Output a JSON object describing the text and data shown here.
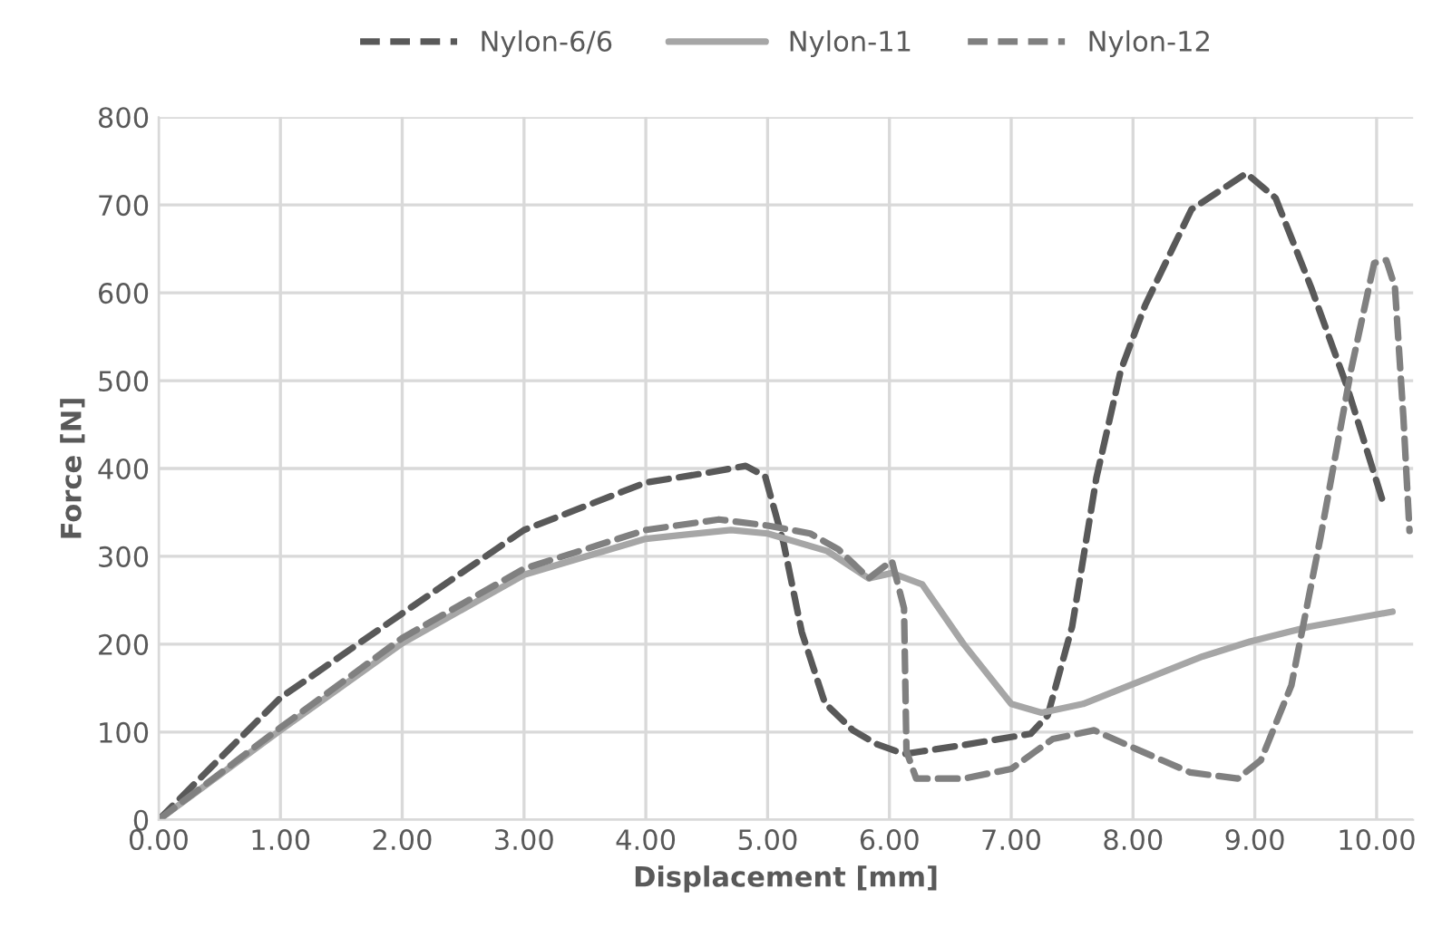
{
  "chart_data": {
    "type": "line",
    "xlabel": "Displacement [mm]",
    "ylabel": "Force [N]",
    "xlim": [
      0,
      10.3
    ],
    "ylim": [
      0,
      800
    ],
    "xticks": [
      {
        "value": 0,
        "label": "0.00"
      },
      {
        "value": 1,
        "label": "1.00"
      },
      {
        "value": 2,
        "label": "2.00"
      },
      {
        "value": 3,
        "label": "3.00"
      },
      {
        "value": 4,
        "label": "4.00"
      },
      {
        "value": 5,
        "label": "5.00"
      },
      {
        "value": 6,
        "label": "6.00"
      },
      {
        "value": 7,
        "label": "7.00"
      },
      {
        "value": 8,
        "label": "8.00"
      },
      {
        "value": 9,
        "label": "9.00"
      },
      {
        "value": 10,
        "label": "10.00"
      }
    ],
    "yticks": [
      0,
      100,
      200,
      300,
      400,
      500,
      600,
      700,
      800
    ],
    "grid": true,
    "legend": "top",
    "marker": "none",
    "series": [
      {
        "name": "Nylon-6/6",
        "color": "#595959",
        "line_style": "dashed",
        "x": [
          0,
          1,
          2,
          3,
          4,
          4.5,
          4.82,
          4.98,
          5.13,
          5.28,
          5.47,
          5.7,
          5.9,
          6.12,
          6.6,
          7.16,
          7.3,
          7.5,
          7.7,
          7.9,
          8.1,
          8.48,
          8.93,
          9.17,
          9.46,
          9.76,
          10.05
        ],
        "values": [
          0,
          139,
          235,
          330,
          384,
          395,
          403,
          391,
          316,
          214,
          133,
          102,
          86,
          75,
          85,
          98,
          119,
          220,
          390,
          512,
          586,
          695,
          736,
          708,
          607,
          492,
          363
        ]
      },
      {
        "name": "Nylon-11",
        "color": "#a6a6a6",
        "line_style": "solid",
        "x": [
          0,
          1,
          2,
          3,
          4,
          4.7,
          5,
          5.49,
          5.83,
          6.02,
          6.27,
          6.61,
          7.0,
          7.25,
          7.59,
          8.08,
          8.57,
          8.96,
          9.45,
          10.13
        ],
        "values": [
          0,
          102,
          201,
          279,
          320,
          330,
          326,
          306,
          275,
          281,
          268,
          200,
          132,
          122,
          132,
          159,
          186,
          203,
          220,
          237
        ]
      },
      {
        "name": "Nylon-12",
        "color": "#808080",
        "line_style": "dashed",
        "x": [
          0,
          1,
          2,
          3,
          4,
          4.6,
          5,
          5.35,
          5.58,
          5.83,
          6.02,
          6.12,
          6.14,
          6.22,
          6.61,
          7.0,
          7.34,
          7.68,
          8.07,
          8.47,
          8.86,
          9.05,
          9.3,
          9.54,
          9.79,
          9.98,
          10.08,
          10.15,
          10.22,
          10.27
        ],
        "values": [
          0,
          105,
          207,
          286,
          330,
          342,
          335,
          326,
          308,
          275,
          295,
          241,
          78,
          47,
          47,
          58,
          92,
          102,
          78,
          54,
          47,
          68,
          153,
          322,
          512,
          634,
          637,
          607,
          458,
          329
        ]
      }
    ]
  }
}
